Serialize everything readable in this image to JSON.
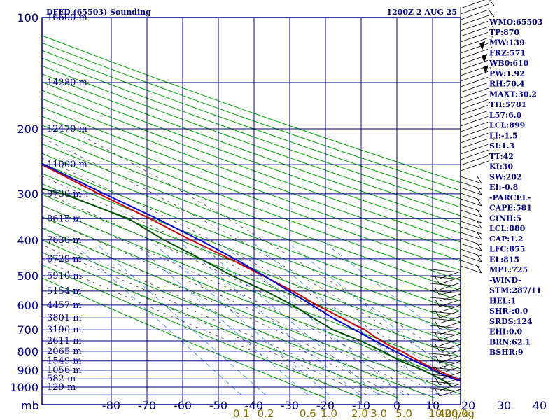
{
  "header": {
    "title": "DFFD (65503) Sounding",
    "time": "1200Z  2 AUG 25"
  },
  "indices": [
    "WMO:65503",
    "TP:870",
    "MW:139",
    "FRZ:571",
    "WB0:610",
    "PW:1.92",
    "RH:70.4",
    "MAXT:30.2",
    "TH:5781",
    "L57:6.0",
    "LCL:899",
    "LI:-1.5",
    "SI:1.3",
    "TT:42",
    "KI:30",
    "SW:202",
    "EI:-0.8",
    "-PARCEL-",
    "CAPE:581",
    "CINH:5",
    "LCL:880",
    "CAP:1.2",
    "LFC:855",
    "EL:815",
    "MPL:725",
    "-WIND-",
    "STM:287/11",
    "HEL:1",
    "SHR-:0.0",
    "SRDS:124",
    "EHI:0.0",
    "BRN:62.1",
    "BSHR:9"
  ],
  "colors": {
    "frame": "#000080",
    "dry_adiabat": "#00a000",
    "moist_adiabat": "#404040",
    "mixing_ratio": "#3080ff",
    "temperature": "#cc0000",
    "dewpoint": "#005000",
    "parcel": "#0000cc",
    "mixing_label": "#8a7000"
  },
  "chart_data": {
    "type": "line",
    "title": "DFFD (65503) Sounding",
    "subtitle": "1200Z  2 AUG 25",
    "xlabel": "mb",
    "pressure_ticks": [
      {
        "p": 100,
        "label": "100"
      },
      {
        "p": 200,
        "label": "200"
      },
      {
        "p": 300,
        "label": "300"
      },
      {
        "p": 400,
        "label": "400"
      },
      {
        "p": 500,
        "label": "500"
      },
      {
        "p": 600,
        "label": "600"
      },
      {
        "p": 700,
        "label": "700"
      },
      {
        "p": 800,
        "label": "800"
      },
      {
        "p": 900,
        "label": "900"
      },
      {
        "p": 1000,
        "label": "1000"
      }
    ],
    "temperature_ticks": [
      {
        "t": -80,
        "label": "-80"
      },
      {
        "t": -70,
        "label": "-70"
      },
      {
        "t": -60,
        "label": "-60"
      },
      {
        "t": -50,
        "label": "-50"
      },
      {
        "t": -40,
        "label": "-40"
      },
      {
        "t": -30,
        "label": "-30"
      },
      {
        "t": -20,
        "label": "-20"
      },
      {
        "t": -10,
        "label": "-10"
      },
      {
        "t": 0,
        "label": "0"
      },
      {
        "t": 10,
        "label": "10"
      },
      {
        "t": 20,
        "label": "20"
      },
      {
        "t": 30,
        "label": "30"
      },
      {
        "t": 40,
        "label": "40"
      }
    ],
    "height_labels": [
      {
        "p": 100,
        "label": "16600 m"
      },
      {
        "p": 150,
        "label": "14280 m"
      },
      {
        "p": 200,
        "label": "12470 m"
      },
      {
        "p": 250,
        "label": "11000 m"
      },
      {
        "p": 300,
        "label": "9730 m"
      },
      {
        "p": 350,
        "label": "8615 m"
      },
      {
        "p": 400,
        "label": "7630 m"
      },
      {
        "p": 450,
        "label": "6729 m"
      },
      {
        "p": 500,
        "label": "5910 m"
      },
      {
        "p": 550,
        "label": "5154 m"
      },
      {
        "p": 600,
        "label": "4457 m"
      },
      {
        "p": 650,
        "label": "3801 m"
      },
      {
        "p": 700,
        "label": "3190 m"
      },
      {
        "p": 750,
        "label": "2611 m"
      },
      {
        "p": 800,
        "label": "2065 m"
      },
      {
        "p": 850,
        "label": "1549 m"
      },
      {
        "p": 900,
        "label": "1056 m"
      },
      {
        "p": 950,
        "label": "582 m"
      },
      {
        "p": 1000,
        "label": "129 m"
      }
    ],
    "mixing_ratio_labels": [
      "0.1",
      "0.2",
      "0.6",
      "1.0",
      "2.0",
      "3.0",
      "5.0",
      "10.0",
      "20.0",
      "40g/kg"
    ],
    "mixing_ratio_values": [
      0.1,
      0.2,
      0.6,
      1.0,
      2.0,
      3.0,
      5.0,
      10.0,
      20.0,
      40.0
    ],
    "ylim": [
      100,
      1050
    ],
    "series": [
      {
        "key": "temperature",
        "points": [
          [
            1012,
            29
          ],
          [
            1000,
            28
          ],
          [
            975,
            25
          ],
          [
            950,
            23.4
          ],
          [
            925,
            21.6
          ],
          [
            900,
            20
          ],
          [
            875,
            18.5
          ],
          [
            850,
            17.2
          ],
          [
            825,
            16
          ],
          [
            800,
            14.8
          ],
          [
            775,
            13
          ],
          [
            750,
            11.8
          ],
          [
            725,
            10.8
          ],
          [
            700,
            10
          ],
          [
            675,
            8.2
          ],
          [
            650,
            6.5
          ],
          [
            600,
            2.8
          ],
          [
            550,
            -0.4
          ],
          [
            500,
            -4.8
          ],
          [
            450,
            -9.8
          ],
          [
            400,
            -16
          ],
          [
            350,
            -22
          ],
          [
            300,
            -30
          ],
          [
            250,
            -38.5
          ],
          [
            200,
            -48.5
          ],
          [
            175,
            -54
          ],
          [
            150,
            -60
          ],
          [
            135,
            -64
          ],
          [
            125,
            -67.2
          ],
          [
            115,
            -70.5
          ],
          [
            105,
            -72.5
          ],
          [
            100,
            -73
          ]
        ]
      },
      {
        "key": "dewpoint",
        "points": [
          [
            1000,
            20
          ],
          [
            975,
            19.6
          ],
          [
            950,
            18.8
          ],
          [
            900,
            16
          ],
          [
            850,
            12
          ],
          [
            800,
            9.5
          ],
          [
            750,
            6
          ],
          [
            700,
            1
          ],
          [
            650,
            -1.5
          ],
          [
            600,
            -4
          ],
          [
            550,
            -8
          ],
          [
            500,
            -13.5
          ],
          [
            450,
            -18
          ],
          [
            400,
            -23.5
          ],
          [
            350,
            -28
          ],
          [
            300,
            -40
          ],
          [
            270,
            -55
          ],
          [
            250,
            -54
          ],
          [
            200,
            -63
          ],
          [
            185,
            -68.4
          ],
          [
            175,
            -70
          ],
          [
            150,
            -77
          ],
          [
            130,
            -80
          ]
        ]
      },
      {
        "key": "parcel",
        "points": [
          [
            1012,
            28
          ],
          [
            990,
            26
          ],
          [
            950,
            22.5
          ],
          [
            920,
            20
          ],
          [
            900,
            19
          ],
          [
            880,
            18
          ],
          [
            850,
            16
          ],
          [
            800,
            13
          ],
          [
            750,
            10
          ],
          [
            700,
            7.2
          ],
          [
            650,
            4
          ],
          [
            600,
            1.5
          ],
          [
            550,
            -1.5
          ],
          [
            500,
            -4.5
          ],
          [
            450,
            -8.5
          ],
          [
            400,
            -13.5
          ],
          [
            350,
            -20
          ],
          [
            300,
            -28.5
          ],
          [
            250,
            -38
          ],
          [
            200,
            -48
          ],
          [
            150,
            -60
          ],
          [
            120,
            -70
          ],
          [
            105,
            -76
          ]
        ]
      }
    ]
  }
}
